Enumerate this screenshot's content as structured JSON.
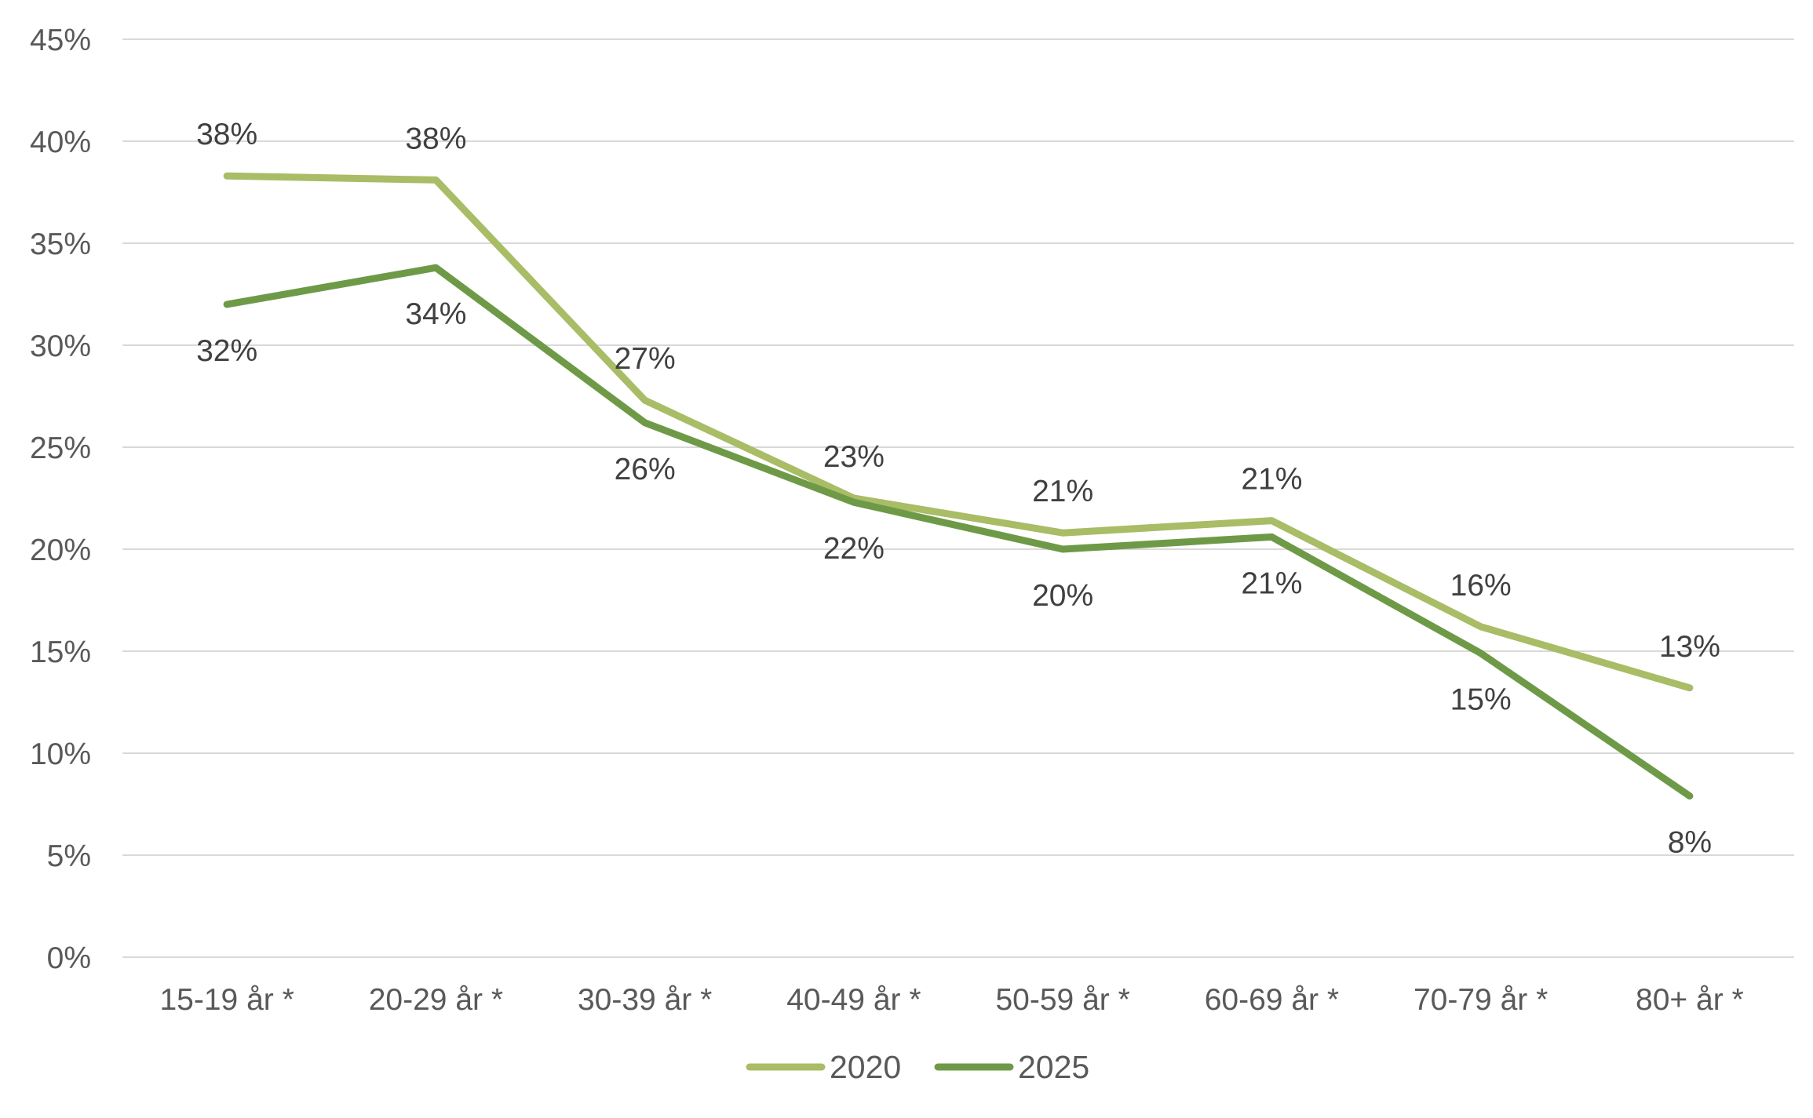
{
  "chart_data": {
    "type": "line",
    "title": "",
    "xlabel": "",
    "ylabel": "",
    "categories": [
      "15-19 år *",
      "20-29 år *",
      "30-39 år *",
      "40-49 år *",
      "50-59 år *",
      "60-69 år *",
      "70-79 år *",
      "80+ år *"
    ],
    "ylim": [
      0,
      45
    ],
    "yticks": [
      0,
      5,
      10,
      15,
      20,
      25,
      30,
      35,
      40,
      45
    ],
    "ytick_labels": [
      "0%",
      "5%",
      "10%",
      "15%",
      "20%",
      "25%",
      "30%",
      "35%",
      "40%",
      "45%"
    ],
    "grid": true,
    "legend_position": "bottom",
    "series": [
      {
        "name": "2020",
        "color": "#a9bc66",
        "values": [
          38.3,
          38.1,
          27.3,
          22.5,
          20.8,
          21.4,
          16.2,
          13.2
        ],
        "labels": [
          "38%",
          "38%",
          "27%",
          "23%",
          "21%",
          "21%",
          "16%",
          "13%"
        ]
      },
      {
        "name": "2025",
        "color": "#6e9a47",
        "values": [
          32.0,
          33.8,
          26.2,
          22.3,
          20.0,
          20.6,
          14.9,
          7.9
        ],
        "labels": [
          "32%",
          "34%",
          "26%",
          "22%",
          "20%",
          "21%",
          "15%",
          "8%"
        ]
      }
    ]
  },
  "colors": {
    "grid": "#d9d9d9",
    "axis_text": "#595959",
    "label_text": "#404040"
  }
}
